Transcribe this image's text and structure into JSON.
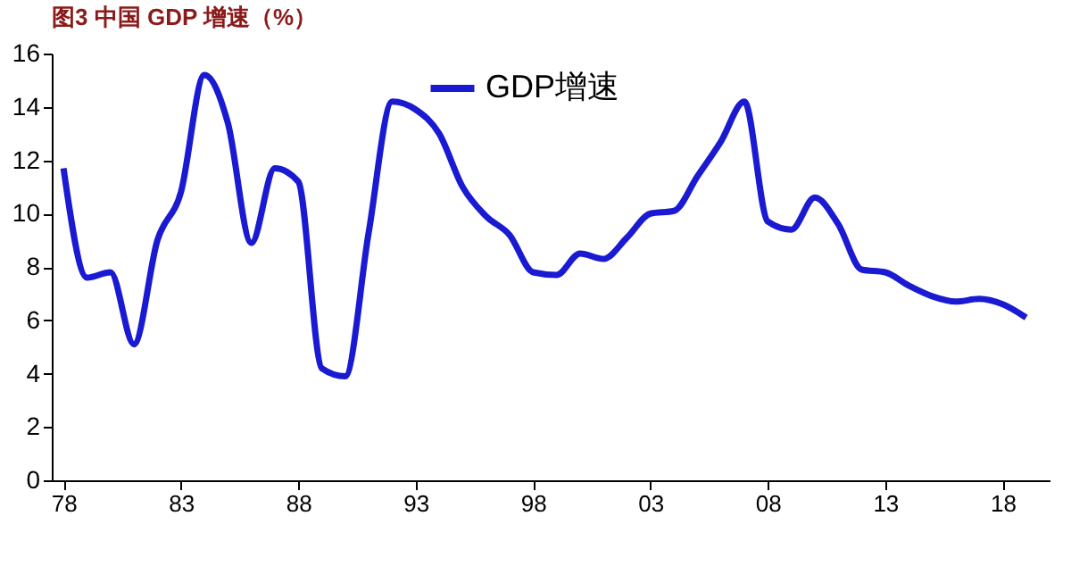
{
  "chart_data": {
    "type": "line",
    "title": "图3  中国 GDP 增速（%）",
    "x": [
      1978,
      1979,
      1980,
      1981,
      1982,
      1983,
      1984,
      1985,
      1986,
      1987,
      1988,
      1989,
      1990,
      1991,
      1992,
      1993,
      1994,
      1995,
      1996,
      1997,
      1998,
      1999,
      2000,
      2001,
      2002,
      2003,
      2004,
      2005,
      2006,
      2007,
      2008,
      2009,
      2010,
      2011,
      2012,
      2013,
      2014,
      2015,
      2016,
      2017,
      2018,
      2019
    ],
    "series": [
      {
        "name": "GDP增速",
        "color": "#1a1ad2",
        "values": [
          11.7,
          7.6,
          7.8,
          5.1,
          9.0,
          10.8,
          15.2,
          13.4,
          8.9,
          11.7,
          11.2,
          4.2,
          3.9,
          9.3,
          14.2,
          13.9,
          13.0,
          11.0,
          9.9,
          9.2,
          7.8,
          7.7,
          8.5,
          8.3,
          9.1,
          10.0,
          10.1,
          11.4,
          12.7,
          14.2,
          9.7,
          9.4,
          10.6,
          9.6,
          7.9,
          7.8,
          7.3,
          6.9,
          6.7,
          6.8,
          6.6,
          6.1
        ]
      }
    ],
    "xlim": [
      1977.5,
      2020
    ],
    "xticks": [
      {
        "value": 1978,
        "label": "78"
      },
      {
        "value": 1983,
        "label": "83"
      },
      {
        "value": 1988,
        "label": "88"
      },
      {
        "value": 1993,
        "label": "93"
      },
      {
        "value": 1998,
        "label": "98"
      },
      {
        "value": 2003,
        "label": "03"
      },
      {
        "value": 2008,
        "label": "08"
      },
      {
        "value": 2013,
        "label": "13"
      },
      {
        "value": 2018,
        "label": "18"
      }
    ],
    "ylim": [
      0,
      16
    ],
    "yticks": [
      0,
      2,
      4,
      6,
      8,
      10,
      12,
      14,
      16
    ],
    "grid": false,
    "legend": "top",
    "marker": "none",
    "line_style": "solid"
  }
}
